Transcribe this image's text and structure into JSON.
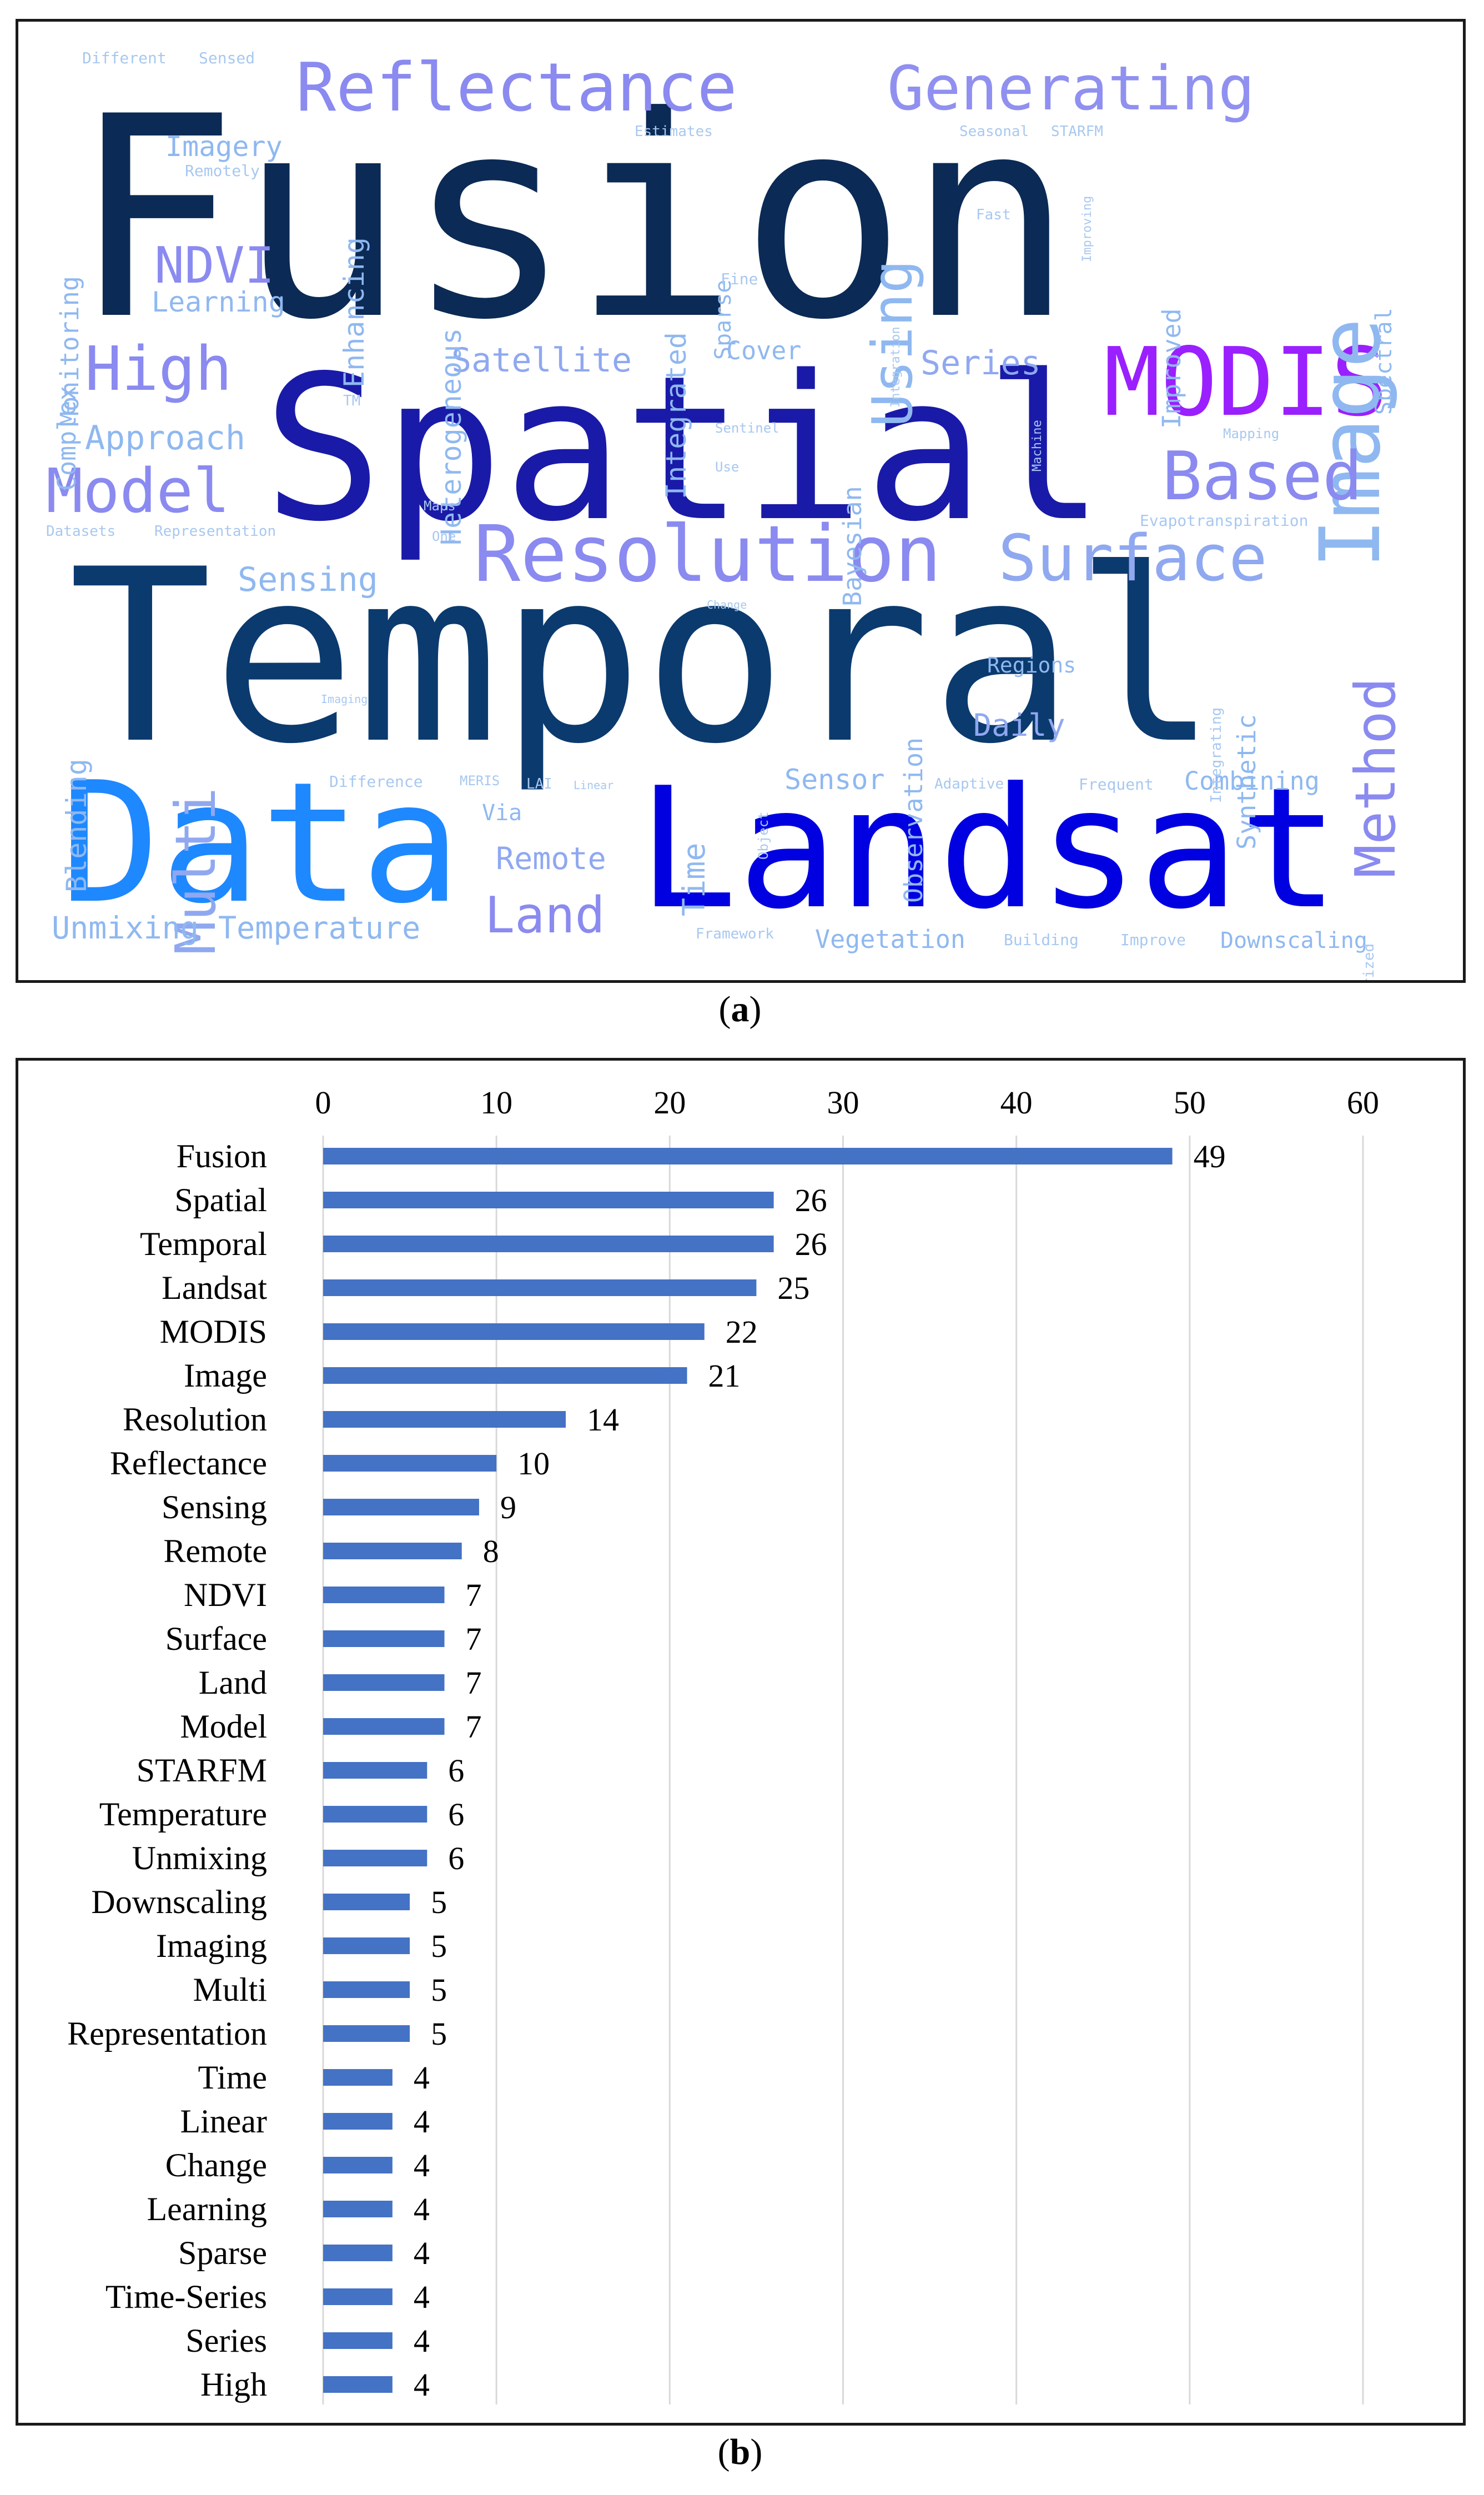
{
  "captions": {
    "a_letter": "a",
    "b_letter": "b"
  },
  "colors": {
    "bar": "#4472C4",
    "grid": "#d9d9d9",
    "text": "#000000"
  },
  "wordcloud": {
    "words": [
      {
        "text": "Fusion",
        "size": 500,
        "color": "#0b2a55",
        "rot": 0
      },
      {
        "text": "Temporal",
        "size": 430,
        "color": "#0b3a6e",
        "rot": 0
      },
      {
        "text": "Spatial",
        "size": 360,
        "color": "#1a1aa8",
        "rot": 0
      },
      {
        "text": "Landsat",
        "size": 300,
        "color": "#0000e0",
        "rot": 0
      },
      {
        "text": "Data",
        "size": 300,
        "color": "#1e88ff",
        "rot": 0
      },
      {
        "text": "Reflectance",
        "size": 120,
        "color": "#8a8af0",
        "rot": 0
      },
      {
        "text": "Generating",
        "size": 110,
        "color": "#9090f0",
        "rot": 0
      },
      {
        "text": "MODIS",
        "size": 170,
        "color": "#9a20ff",
        "rot": 0
      },
      {
        "text": "Image",
        "size": 150,
        "color": "#8fb8f0",
        "rot": -90
      },
      {
        "text": "Resolution",
        "size": 140,
        "color": "#8a8af0",
        "rot": 0
      },
      {
        "text": "Surface",
        "size": 115,
        "color": "#8fa8f0",
        "rot": 0
      },
      {
        "text": "Based",
        "size": 120,
        "color": "#8a8af0",
        "rot": 0
      },
      {
        "text": "Method",
        "size": 100,
        "color": "#8a8af0",
        "rot": -90
      },
      {
        "text": "Model",
        "size": 110,
        "color": "#8a8af0",
        "rot": 0
      },
      {
        "text": "High",
        "size": 110,
        "color": "#8a8af0",
        "rot": 0
      },
      {
        "text": "NDVI",
        "size": 90,
        "color": "#8a8af0",
        "rot": 0
      },
      {
        "text": "Land",
        "size": 90,
        "color": "#8a8af0",
        "rot": 0
      },
      {
        "text": "Multi",
        "size": 100,
        "color": "#8fa8f0",
        "rot": -90
      },
      {
        "text": "Using",
        "size": 100,
        "color": "#8fb8f0",
        "rot": -90
      },
      {
        "text": "Satellite",
        "size": 60,
        "color": "#8fa8f0",
        "rot": 0
      },
      {
        "text": "Series",
        "size": 60,
        "color": "#8fa8f0",
        "rot": 0
      },
      {
        "text": "Approach",
        "size": 60,
        "color": "#8fb8f0",
        "rot": 0
      },
      {
        "text": "Sensing",
        "size": 60,
        "color": "#8fb8f0",
        "rot": 0
      },
      {
        "text": "Remote",
        "size": 55,
        "color": "#8fa8f0",
        "rot": 0
      },
      {
        "text": "Daily",
        "size": 55,
        "color": "#8fa8f0",
        "rot": 0
      },
      {
        "text": "Sensor",
        "size": 50,
        "color": "#8fb8f0",
        "rot": 0
      },
      {
        "text": "Unmixing",
        "size": 55,
        "color": "#8fb8f0",
        "rot": 0
      },
      {
        "text": "Temperature",
        "size": 55,
        "color": "#8fb8f0",
        "rot": 0
      },
      {
        "text": "Imagery",
        "size": 50,
        "color": "#8fb8f0",
        "rot": 0
      },
      {
        "text": "Learning",
        "size": 50,
        "color": "#8fb8f0",
        "rot": 0
      },
      {
        "text": "Cover",
        "size": 45,
        "color": "#8fb8f0",
        "rot": 0
      },
      {
        "text": "Combining",
        "size": 45,
        "color": "#8fb8f0",
        "rot": 0
      },
      {
        "text": "Vegetation",
        "size": 45,
        "color": "#8fb8f0",
        "rot": 0
      },
      {
        "text": "Downscaling",
        "size": 40,
        "color": "#8fb8f0",
        "rot": 0
      },
      {
        "text": "Time",
        "size": 55,
        "color": "#8fb8f0",
        "rot": -90
      },
      {
        "text": "Blending",
        "size": 50,
        "color": "#8fb8f0",
        "rot": -90
      },
      {
        "text": "Complex",
        "size": 45,
        "color": "#8fb8f0",
        "rot": -90
      },
      {
        "text": "Monitoring",
        "size": 45,
        "color": "#8fb8f0",
        "rot": -90
      },
      {
        "text": "Enhancing",
        "size": 50,
        "color": "#8fb8f0",
        "rot": -90
      },
      {
        "text": "Heterogeneous",
        "size": 50,
        "color": "#8fb8f0",
        "rot": -90
      },
      {
        "text": "Integrated",
        "size": 50,
        "color": "#8fb8f0",
        "rot": -90
      },
      {
        "text": "Sparse",
        "size": 40,
        "color": "#8fb8f0",
        "rot": -90
      },
      {
        "text": "Bayesian",
        "size": 45,
        "color": "#8fb8f0",
        "rot": -90
      },
      {
        "text": "Observation",
        "size": 45,
        "color": "#8fb8f0",
        "rot": -90
      },
      {
        "text": "Improved",
        "size": 45,
        "color": "#8fb8f0",
        "rot": -90
      },
      {
        "text": "Spectral",
        "size": 40,
        "color": "#8fb8f0",
        "rot": -90
      },
      {
        "text": "Synthetic",
        "size": 45,
        "color": "#8fb8f0",
        "rot": -90
      },
      {
        "text": "Via",
        "size": 40,
        "color": "#8fb8f0",
        "rot": 0
      },
      {
        "text": "Regions",
        "size": 38,
        "color": "#8fb8f0",
        "rot": 0
      },
      {
        "text": "Different",
        "size": 28,
        "color": "#a8c8f0",
        "rot": 0
      },
      {
        "text": "Sensed",
        "size": 28,
        "color": "#a8c8f0",
        "rot": 0
      },
      {
        "text": "Remotely",
        "size": 28,
        "color": "#a8c8f0",
        "rot": 0
      },
      {
        "text": "Fine",
        "size": 28,
        "color": "#a8c8f0",
        "rot": 0
      },
      {
        "text": "Datasets",
        "size": 26,
        "color": "#a8c8f0",
        "rot": 0
      },
      {
        "text": "Representation",
        "size": 26,
        "color": "#a8c8f0",
        "rot": 0
      },
      {
        "text": "Difference",
        "size": 28,
        "color": "#a8c8f0",
        "rot": 0
      },
      {
        "text": "MERIS",
        "size": 24,
        "color": "#a8c8f0",
        "rot": 0
      },
      {
        "text": "LAI",
        "size": 26,
        "color": "#a8c8f0",
        "rot": 0
      },
      {
        "text": "Adaptive",
        "size": 26,
        "color": "#a8c8f0",
        "rot": 0
      },
      {
        "text": "Frequent",
        "size": 28,
        "color": "#a8c8f0",
        "rot": 0
      },
      {
        "text": "Framework",
        "size": 26,
        "color": "#a8c8f0",
        "rot": 0
      },
      {
        "text": "Building",
        "size": 28,
        "color": "#a8c8f0",
        "rot": 0
      },
      {
        "text": "Improve",
        "size": 28,
        "color": "#a8c8f0",
        "rot": 0
      },
      {
        "text": "Regularized",
        "size": 26,
        "color": "#a8c8f0",
        "rot": -90
      },
      {
        "text": "Mapping",
        "size": 24,
        "color": "#a8c8f0",
        "rot": 0
      },
      {
        "text": "Evapotranspiration",
        "size": 28,
        "color": "#a8c8f0",
        "rot": 0
      },
      {
        "text": "Sentinel",
        "size": 24,
        "color": "#a8c8f0",
        "rot": 0
      },
      {
        "text": "Use",
        "size": 24,
        "color": "#a8c8f0",
        "rot": 0
      },
      {
        "text": "Maps",
        "size": 24,
        "color": "#a8c8f0",
        "rot": 0
      },
      {
        "text": "One",
        "size": 24,
        "color": "#a8c8f0",
        "rot": 0
      },
      {
        "text": "STARFM",
        "size": 26,
        "color": "#a8c8f0",
        "rot": 0
      },
      {
        "text": "Seasonal",
        "size": 26,
        "color": "#a8c8f0",
        "rot": 0
      },
      {
        "text": "Estimates",
        "size": 26,
        "color": "#a8c8f0",
        "rot": 0
      },
      {
        "text": "Fast",
        "size": 26,
        "color": "#a8c8f0",
        "rot": 0
      },
      {
        "text": "TM",
        "size": 26,
        "color": "#a8c8f0",
        "rot": 0
      },
      {
        "text": "Object",
        "size": 24,
        "color": "#a8c8f0",
        "rot": -90
      },
      {
        "text": "Machine",
        "size": 22,
        "color": "#a8c8f0",
        "rot": -90
      },
      {
        "text": "Integrating",
        "size": 26,
        "color": "#a8c8f0",
        "rot": -90
      },
      {
        "text": "Integration",
        "size": 22,
        "color": "#a8c8f0",
        "rot": -90
      },
      {
        "text": "Improving",
        "size": 22,
        "color": "#a8c8f0",
        "rot": -90
      },
      {
        "text": "Linear",
        "size": 20,
        "color": "#a8c8f0",
        "rot": 0
      },
      {
        "text": "Change",
        "size": 20,
        "color": "#a8c8f0",
        "rot": 0
      },
      {
        "text": "Imaging",
        "size": 20,
        "color": "#a8c8f0",
        "rot": 0
      }
    ]
  },
  "chart_data": {
    "type": "bar",
    "orientation": "horizontal",
    "categories": [
      "Fusion",
      "Spatial",
      "Temporal",
      "Landsat",
      "MODIS",
      "Image",
      "Resolution",
      "Reflectance",
      "Sensing",
      "Remote",
      "NDVI",
      "Surface",
      "Land",
      "Model",
      "STARFM",
      "Temperature",
      "Unmixing",
      "Downscaling",
      "Imaging",
      "Multi",
      "Representation",
      "Time",
      "Linear",
      "Change",
      "Learning",
      "Sparse",
      "Time-Series",
      "Series",
      "High"
    ],
    "values": [
      49,
      26,
      26,
      25,
      22,
      21,
      14,
      10,
      9,
      8,
      7,
      7,
      7,
      7,
      6,
      6,
      6,
      5,
      5,
      5,
      5,
      4,
      4,
      4,
      4,
      4,
      4,
      4,
      4
    ],
    "xlim": [
      0,
      60
    ],
    "xticks": [
      "0",
      "10",
      "20",
      "30",
      "40",
      "50",
      "60"
    ],
    "axis_position": "top",
    "grid": true,
    "data_labels": true
  }
}
